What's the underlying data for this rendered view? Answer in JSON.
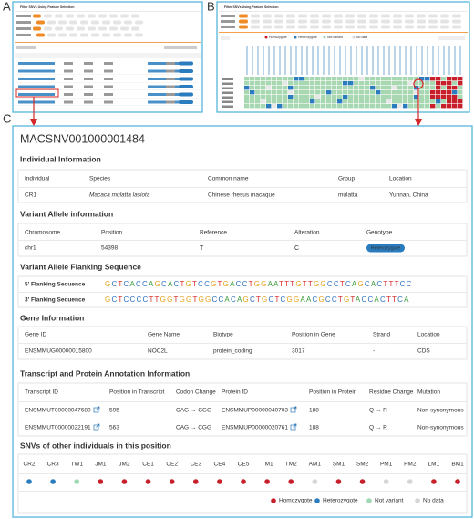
{
  "panels": {
    "a": "A",
    "b": "B",
    "c": "C"
  },
  "panel_a": {
    "title": "Filter SNVs Using Feature Selection"
  },
  "panel_b": {
    "title": "Filter SNVs Using Feature Selection",
    "legend": [
      "Homozygote",
      "Heterozygote",
      "Not variant",
      "No data"
    ]
  },
  "detail": {
    "id": "MACSNV001000001484",
    "individual": {
      "title": "Individual Information",
      "headers": [
        "Individual",
        "Species",
        "Common name",
        "Group",
        "Location"
      ],
      "row": [
        "CR1",
        "Macaca mulatta lasiota",
        "Chinese rhesus macaque",
        "mulatta",
        "Yunnan, China"
      ]
    },
    "variant": {
      "title": "Variant Allele information",
      "headers": [
        "Chromosome",
        "Position",
        "Reference",
        "Alteration",
        "Genotype"
      ],
      "row": [
        "chr1",
        "54398",
        "T",
        "C",
        "Heterozygote"
      ]
    },
    "flanking": {
      "title": "Variant Allele Flanking Sequence",
      "rows": [
        [
          "5' Flanking Sequence",
          "GCTCACCAGCACTGTCCGTGACCTGGAATTTGTTGGCCTCAGCACTTTCC"
        ],
        [
          "3' Flanking Sequence",
          "GCTCCCCTTGGTGGTGGCCACAGCTGCTCGGAACGCCTGTACCACTTCA"
        ]
      ]
    },
    "gene": {
      "title": "Gene Information",
      "headers": [
        "Gene ID",
        "Gene Name",
        "Biotype",
        "Position in Gene",
        "Strand",
        "Location"
      ],
      "row": [
        "ENSMMUG00000015800",
        "NOC2L",
        "protein_coding",
        "3017",
        "-",
        "CDS"
      ]
    },
    "transcript": {
      "title": "Transcript and Protein Annotation Information",
      "headers": [
        "Transcript ID",
        "Position in Transcript",
        "Codon Change",
        "Protein ID",
        "Position in Protein",
        "Residue Change",
        "Mutation"
      ],
      "rows": [
        [
          "ENSMMUT00000047680",
          "595",
          "CAG → CGG",
          "ENSMMUP00000040703",
          "188",
          "Q → R",
          "Non-synonymous"
        ],
        [
          "ENSMMUT00000022191",
          "563",
          "CAG → CGG",
          "ENSMMUP00000020761",
          "188",
          "Q → R",
          "Non-synonymous"
        ]
      ]
    },
    "others": {
      "title": "SNVs of other individuals in this position",
      "individuals": [
        "CR2",
        "CR3",
        "TW1",
        "JM1",
        "JM2",
        "CE1",
        "CE2",
        "CE3",
        "CE4",
        "CE5",
        "TM1",
        "TM2",
        "AM1",
        "SM1",
        "SM2",
        "PM1",
        "PM2",
        "LM1",
        "BM1"
      ],
      "colors": [
        "#2b7bbf",
        "#2b7bbf",
        "#9fd9b4",
        "#c8202b",
        "#c8202b",
        "#c8202b",
        "#c8202b",
        "#c8202b",
        "#c8202b",
        "#c8202b",
        "#c8202b",
        "#c8202b",
        "#d5d5d5",
        "#c8202b",
        "#c8202b",
        "#d5d5d5",
        "#d5d5d5",
        "#c8202b",
        "#c8202b"
      ],
      "legend": [
        {
          "name": "Homozygote",
          "color": "#c8202b"
        },
        {
          "name": "Heterozygote",
          "color": "#2b7bbf"
        },
        {
          "name": "Not variant",
          "color": "#9fd9b4"
        },
        {
          "name": "No data",
          "color": "#d5d5d5"
        }
      ]
    }
  }
}
